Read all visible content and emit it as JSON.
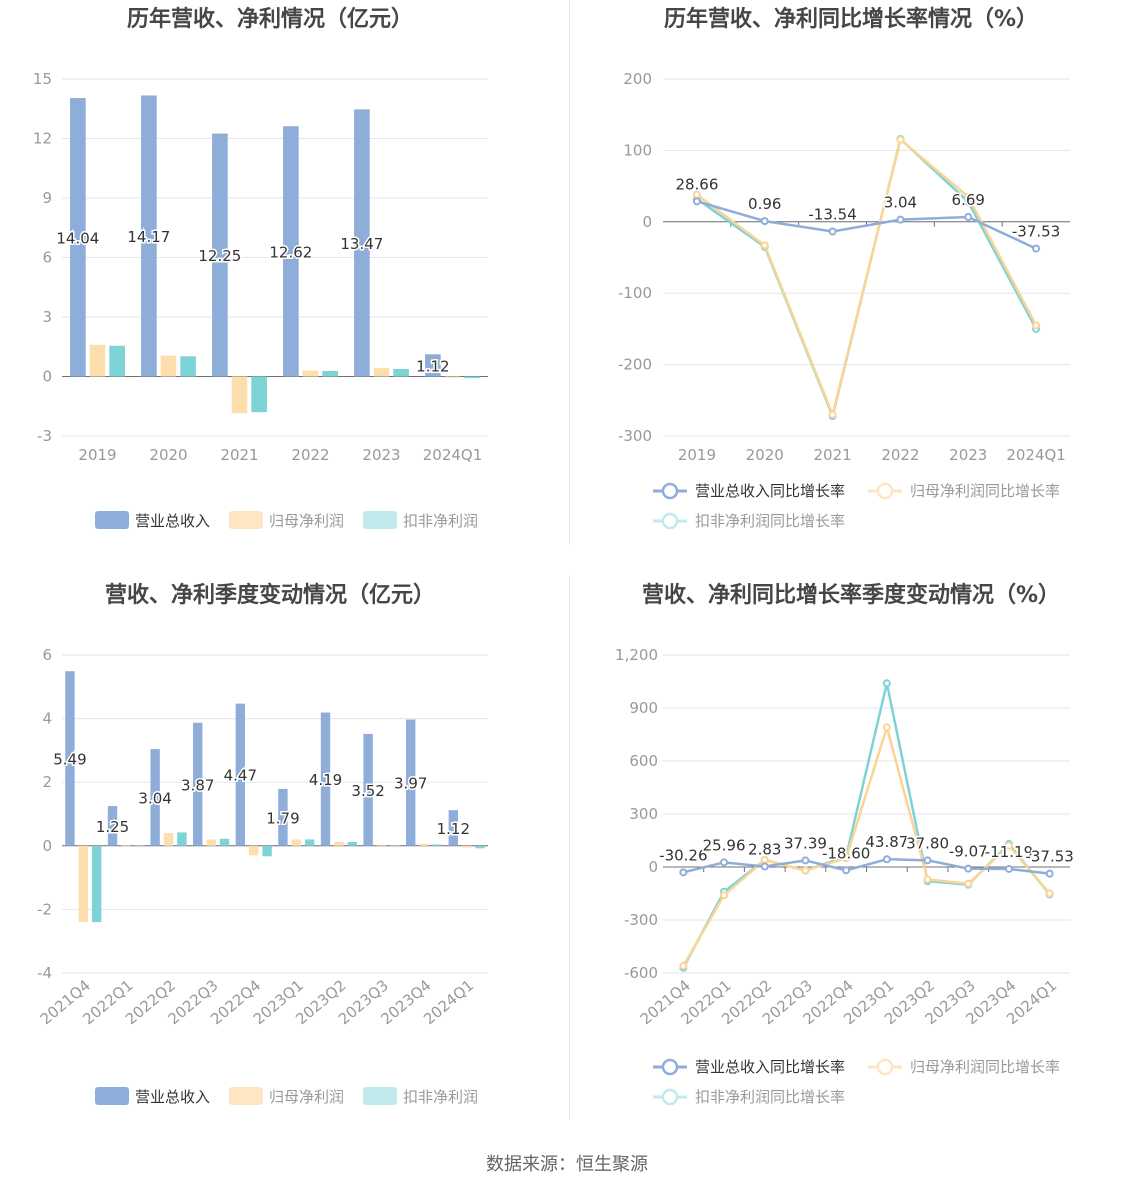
{
  "colors": {
    "revenue": "#8eadd9",
    "net_profit": "#fddfae",
    "deducted_profit": "#7ed3d6",
    "revenue_legend": "#8eadd9",
    "net_profit_legend": "#ffe6c2",
    "deducted_profit_legend": "#bfe9ea",
    "grid": "#e3e6f0",
    "axis_text": "#999999",
    "label_text": "#333333",
    "title_text": "#464646"
  },
  "footer": {
    "source": "数据来源：恒生聚源"
  },
  "chart_data": [
    {
      "id": "annual-bar",
      "type": "bar",
      "title": "历年营收、净利情况（亿元）",
      "categories": [
        "2019",
        "2020",
        "2021",
        "2022",
        "2023",
        "2024Q1"
      ],
      "ylim": [
        -3,
        15
      ],
      "yticks": [
        -3,
        0,
        3,
        6,
        9,
        12,
        15
      ],
      "legend_position": "bottom",
      "series": [
        {
          "name": "营业总收入",
          "values": [
            14.04,
            14.17,
            12.25,
            12.62,
            13.47,
            1.12
          ],
          "labels": [
            "14.04",
            "14.17",
            "12.25",
            "12.62",
            "13.47",
            "1.12"
          ]
        },
        {
          "name": "归母净利润",
          "values": [
            1.6,
            1.05,
            -1.85,
            0.3,
            0.42,
            -0.06
          ]
        },
        {
          "name": "扣非净利润",
          "values": [
            1.55,
            1.02,
            -1.8,
            0.28,
            0.38,
            -0.08
          ]
        }
      ]
    },
    {
      "id": "annual-line",
      "type": "line",
      "title": "历年营收、净利同比增长率情况（%）",
      "categories": [
        "2019",
        "2020",
        "2021",
        "2022",
        "2023",
        "2024Q1"
      ],
      "ylim": [
        -300,
        200
      ],
      "yticks": [
        -300,
        -200,
        -100,
        0,
        100,
        200
      ],
      "legend_position": "bottom",
      "series": [
        {
          "name": "营业总收入同比增长率",
          "values": [
            28.66,
            0.96,
            -13.54,
            3.04,
            6.69,
            -37.53
          ],
          "labels": [
            "28.66",
            "0.96",
            "-13.54",
            "3.04",
            "6.69",
            "-37.53"
          ]
        },
        {
          "name": "归母净利润同比增长率",
          "values": [
            38,
            -33,
            -270,
            115,
            35,
            -145
          ]
        },
        {
          "name": "扣非净利润同比增长率",
          "values": [
            32,
            -35,
            -272,
            116,
            28,
            -150
          ]
        }
      ]
    },
    {
      "id": "quarter-bar",
      "type": "bar",
      "title": "营收、净利季度变动情况（亿元）",
      "categories": [
        "2021Q4",
        "2022Q1",
        "2022Q2",
        "2022Q3",
        "2022Q4",
        "2023Q1",
        "2023Q2",
        "2023Q3",
        "2023Q4",
        "2024Q1"
      ],
      "ylim": [
        -4,
        6
      ],
      "yticks": [
        -4,
        -2,
        0,
        2,
        4,
        6
      ],
      "legend_position": "bottom",
      "series": [
        {
          "name": "营业总收入",
          "values": [
            5.49,
            1.25,
            3.04,
            3.87,
            4.47,
            1.79,
            4.19,
            3.52,
            3.97,
            1.12
          ],
          "labels": [
            "5.49",
            "1.25",
            "3.04",
            "3.87",
            "4.47",
            "1.79",
            "4.19",
            "3.52",
            "3.97",
            "1.12"
          ]
        },
        {
          "name": "归母净利润",
          "values": [
            -2.4,
            0.02,
            0.4,
            0.2,
            -0.3,
            0.2,
            0.12,
            0.02,
            0.06,
            -0.06
          ]
        },
        {
          "name": "扣非净利润",
          "values": [
            -2.4,
            0.01,
            0.42,
            0.22,
            -0.33,
            0.2,
            0.12,
            0.01,
            0.04,
            -0.08
          ]
        }
      ]
    },
    {
      "id": "quarter-line",
      "type": "line",
      "title": "营收、净利同比增长率季度变动情况（%）",
      "categories": [
        "2021Q4",
        "2022Q1",
        "2022Q2",
        "2022Q3",
        "2022Q4",
        "2023Q1",
        "2023Q2",
        "2023Q3",
        "2023Q4",
        "2024Q1"
      ],
      "ylim": [
        -600,
        1200
      ],
      "yticks": [
        -600,
        -300,
        0,
        300,
        600,
        900,
        1200
      ],
      "ytick_labels": [
        "-600",
        "-300",
        "0",
        "300",
        "600",
        "900",
        "1,200"
      ],
      "legend_position": "bottom",
      "series": [
        {
          "name": "营业总收入同比增长率",
          "values": [
            -30.26,
            25.96,
            2.83,
            37.39,
            -18.6,
            43.87,
            37.8,
            -9.07,
            -11.19,
            -37.53
          ],
          "labels": [
            "-30.26",
            "25.96",
            "2.83",
            "37.39",
            "-18.60",
            "43.87",
            "37.80",
            "-9.07",
            "-11.19",
            "-37.53"
          ]
        },
        {
          "name": "归母净利润同比增长率",
          "values": [
            -560,
            -160,
            40,
            -20,
            50,
            790,
            -70,
            -95,
            120,
            -150
          ]
        },
        {
          "name": "扣非净利润同比增长率",
          "values": [
            -570,
            -140,
            40,
            -20,
            60,
            1040,
            -80,
            -100,
            130,
            -155
          ]
        }
      ]
    }
  ]
}
